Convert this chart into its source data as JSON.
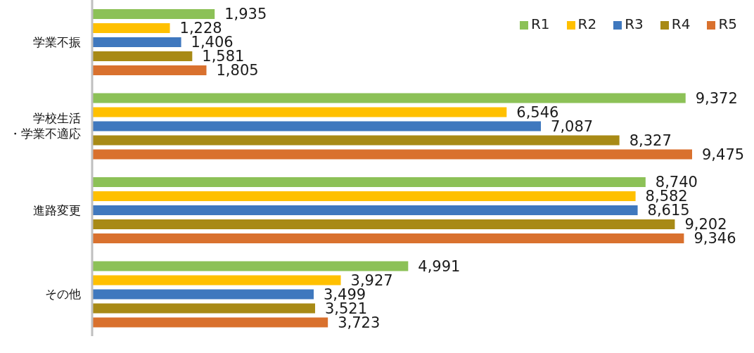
{
  "chart_data": {
    "type": "bar",
    "orientation": "horizontal",
    "categories": [
      "学業不振",
      "学校生活・学業不適応",
      "進路変更",
      "その他"
    ],
    "series": [
      {
        "name": "R1",
        "color": "#8cc157",
        "values": [
          1935,
          9372,
          8740,
          4991
        ],
        "value_labels": [
          "1,935",
          "9,372",
          "8,740",
          "4,991"
        ]
      },
      {
        "name": "R2",
        "color": "#ffc000",
        "values": [
          1228,
          6546,
          8582,
          3927
        ],
        "value_labels": [
          "1,228",
          "6,546",
          "8,582",
          "3,927"
        ]
      },
      {
        "name": "R3",
        "color": "#3f78be",
        "values": [
          1406,
          7087,
          8615,
          3499
        ],
        "value_labels": [
          "1,406",
          "7,087",
          "8,615",
          "3,499"
        ]
      },
      {
        "name": "R4",
        "color": "#a88a16",
        "values": [
          1581,
          8327,
          9202,
          3521
        ],
        "value_labels": [
          "1,581",
          "8,327",
          "9,202",
          "3,521"
        ]
      },
      {
        "name": "R5",
        "color": "#d9712e",
        "values": [
          1805,
          9475,
          9346,
          3723
        ],
        "value_labels": [
          "1,805",
          "9,475",
          "9,346",
          "3,723"
        ]
      }
    ],
    "legend": "top right",
    "tick_labels": "y"
  }
}
